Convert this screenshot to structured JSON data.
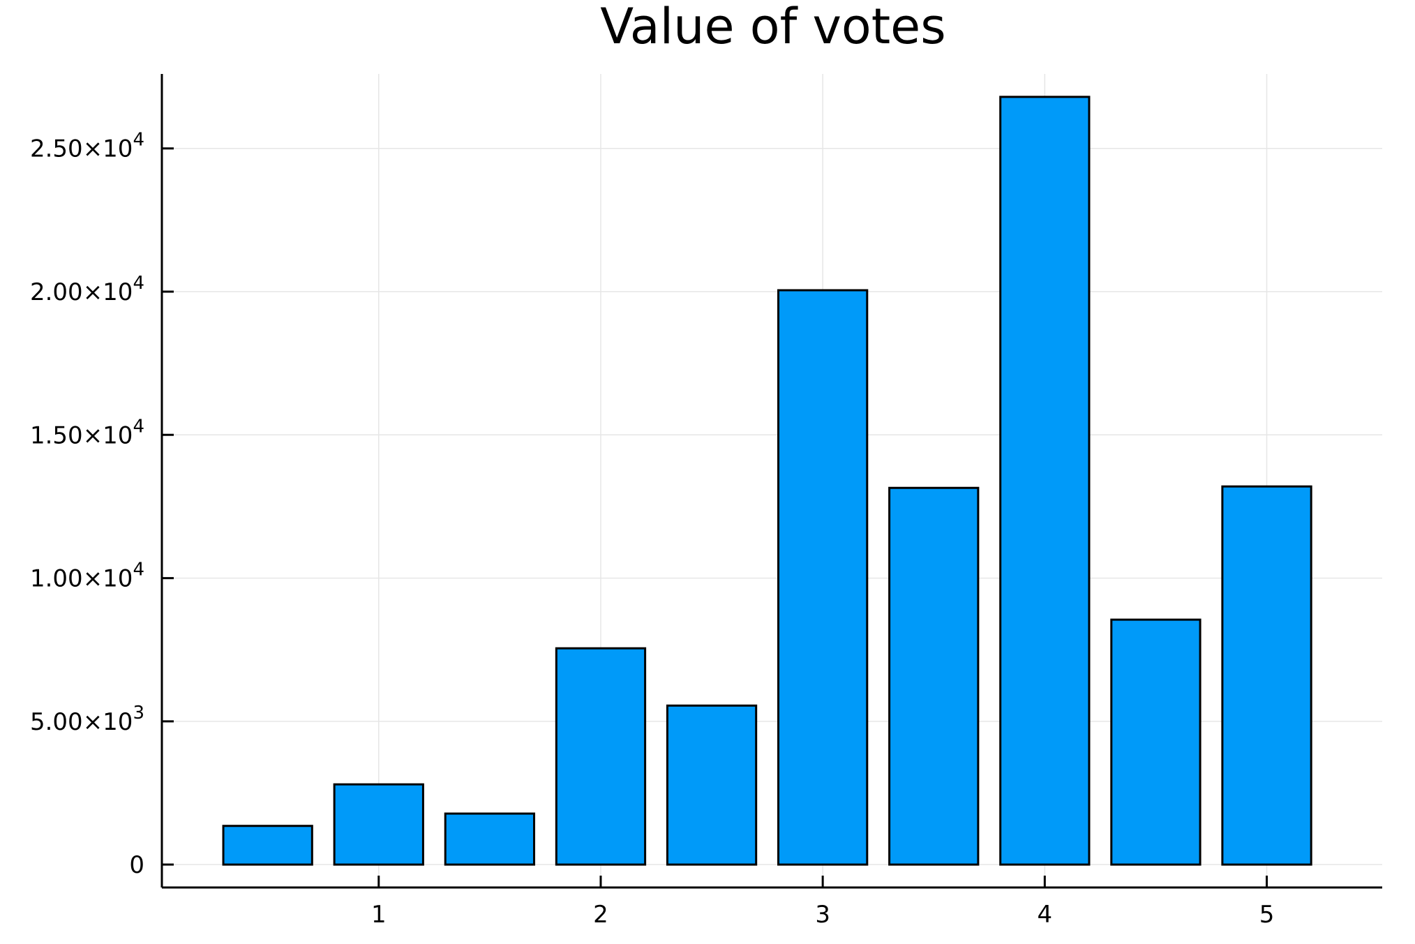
{
  "chart_data": {
    "type": "bar",
    "title": "Value of votes",
    "xlabel": "",
    "ylabel": "",
    "x": [
      0.5,
      1.0,
      1.5,
      2.0,
      2.5,
      3.0,
      3.5,
      4.0,
      4.5,
      5.0
    ],
    "values": [
      1350,
      2800,
      1780,
      7550,
      5550,
      20050,
      13150,
      26800,
      8550,
      13200
    ],
    "xlim": [
      0.0233,
      5.52
    ],
    "ylim": [
      -800,
      27600
    ],
    "bar_width": 0.4,
    "x_ticks": [
      {
        "value": 1,
        "label": "1"
      },
      {
        "value": 2,
        "label": "2"
      },
      {
        "value": 3,
        "label": "3"
      },
      {
        "value": 4,
        "label": "4"
      },
      {
        "value": 5,
        "label": "5"
      }
    ],
    "y_ticks": [
      {
        "value": 0,
        "mantissa": "0",
        "exponent": ""
      },
      {
        "value": 5000,
        "mantissa": "5.00×10",
        "exponent": "3"
      },
      {
        "value": 10000,
        "mantissa": "1.00×10",
        "exponent": "4"
      },
      {
        "value": 15000,
        "mantissa": "1.50×10",
        "exponent": "4"
      },
      {
        "value": 20000,
        "mantissa": "2.00×10",
        "exponent": "4"
      },
      {
        "value": 25000,
        "mantissa": "2.50×10",
        "exponent": "4"
      }
    ],
    "grid": true,
    "legend": "none",
    "colors": {
      "bar_fill": "#009af9",
      "bar_stroke": "#000000",
      "grid": "#e6e6e6",
      "axis": "#000000"
    }
  }
}
